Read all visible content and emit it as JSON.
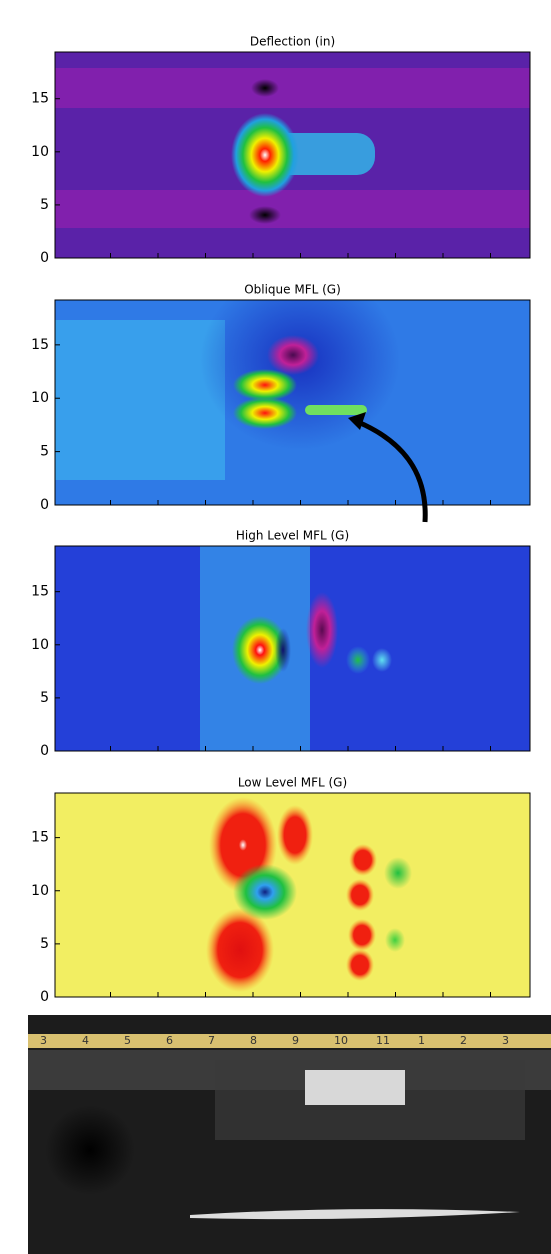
{
  "chart_data": [
    {
      "type": "heatmap",
      "title": "Deflection (in)",
      "ylim": [
        0,
        19.4
      ],
      "yticks": [
        0,
        5,
        10,
        15
      ]
    },
    {
      "type": "heatmap",
      "title": "Oblique MFL (G)",
      "ylim": [
        0,
        19.2
      ],
      "yticks": [
        0,
        5,
        10,
        15
      ]
    },
    {
      "type": "heatmap",
      "title": "High Level MFL (G)",
      "ylim": [
        0,
        19.3
      ],
      "yticks": [
        0,
        5,
        10,
        15
      ]
    },
    {
      "type": "heatmap",
      "title": "Low Level MFL (G)",
      "ylim": [
        0,
        19.2
      ],
      "yticks": [
        0,
        5,
        10,
        15
      ]
    }
  ],
  "photo": {
    "ruler_labels": [
      "3",
      "4",
      "5",
      "6",
      "7",
      "8",
      "9",
      "10",
      "11",
      "1",
      "2",
      "3"
    ]
  }
}
